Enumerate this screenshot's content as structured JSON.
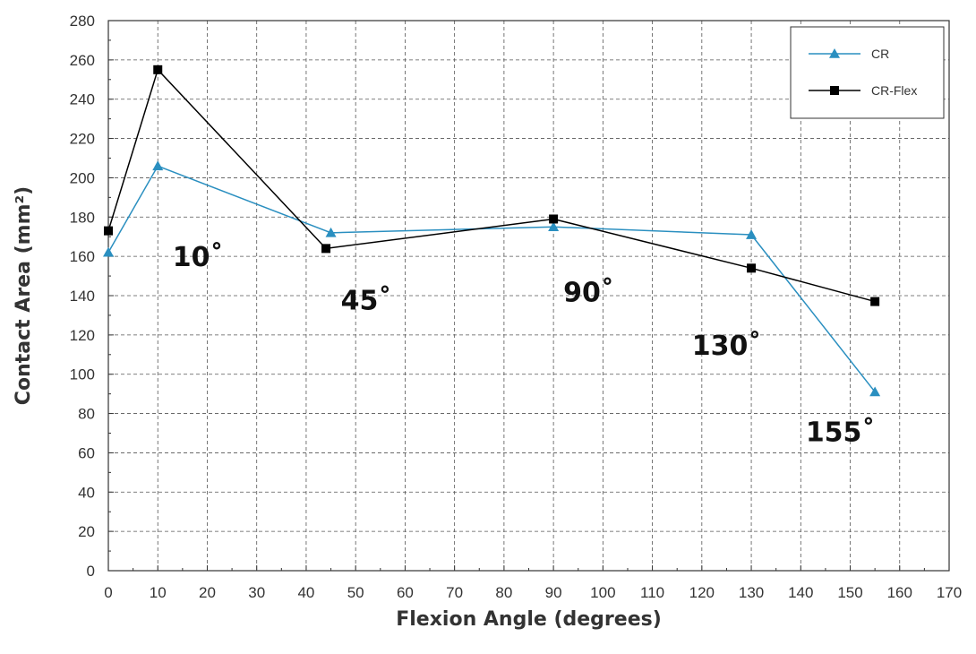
{
  "chart_data": {
    "type": "line",
    "xlabel": "Flexion Angle (degrees)",
    "ylabel": "Contact Area (mm²)",
    "xlim": [
      0,
      170
    ],
    "ylim": [
      0,
      280
    ],
    "x_ticks": [
      0,
      10,
      20,
      30,
      40,
      50,
      60,
      70,
      80,
      90,
      100,
      110,
      120,
      130,
      140,
      150,
      160,
      170
    ],
    "y_ticks": [
      0,
      20,
      40,
      60,
      80,
      100,
      120,
      140,
      160,
      180,
      200,
      220,
      240,
      260,
      280
    ],
    "grid": true,
    "legend_position": "top-right",
    "series": [
      {
        "name": "CR",
        "color": "#2a8fc0",
        "marker": "triangle",
        "points": [
          [
            0,
            162
          ],
          [
            10,
            206
          ],
          [
            45,
            172
          ],
          [
            90,
            175
          ],
          [
            130,
            171
          ],
          [
            155,
            91
          ]
        ]
      },
      {
        "name": "CR-Flex",
        "color": "#000000",
        "marker": "square",
        "points": [
          [
            0,
            173
          ],
          [
            10,
            255
          ],
          [
            44,
            164
          ],
          [
            90,
            179
          ],
          [
            130,
            154
          ],
          [
            155,
            137
          ]
        ]
      }
    ],
    "annotations": [
      {
        "text": "10˚",
        "x": 13,
        "y": 155
      },
      {
        "text": "45˚",
        "x": 47,
        "y": 133
      },
      {
        "text": "90˚",
        "x": 92,
        "y": 137
      },
      {
        "text": "130˚",
        "x": 118,
        "y": 110
      },
      {
        "text": "155˚",
        "x": 141,
        "y": 66
      }
    ]
  }
}
